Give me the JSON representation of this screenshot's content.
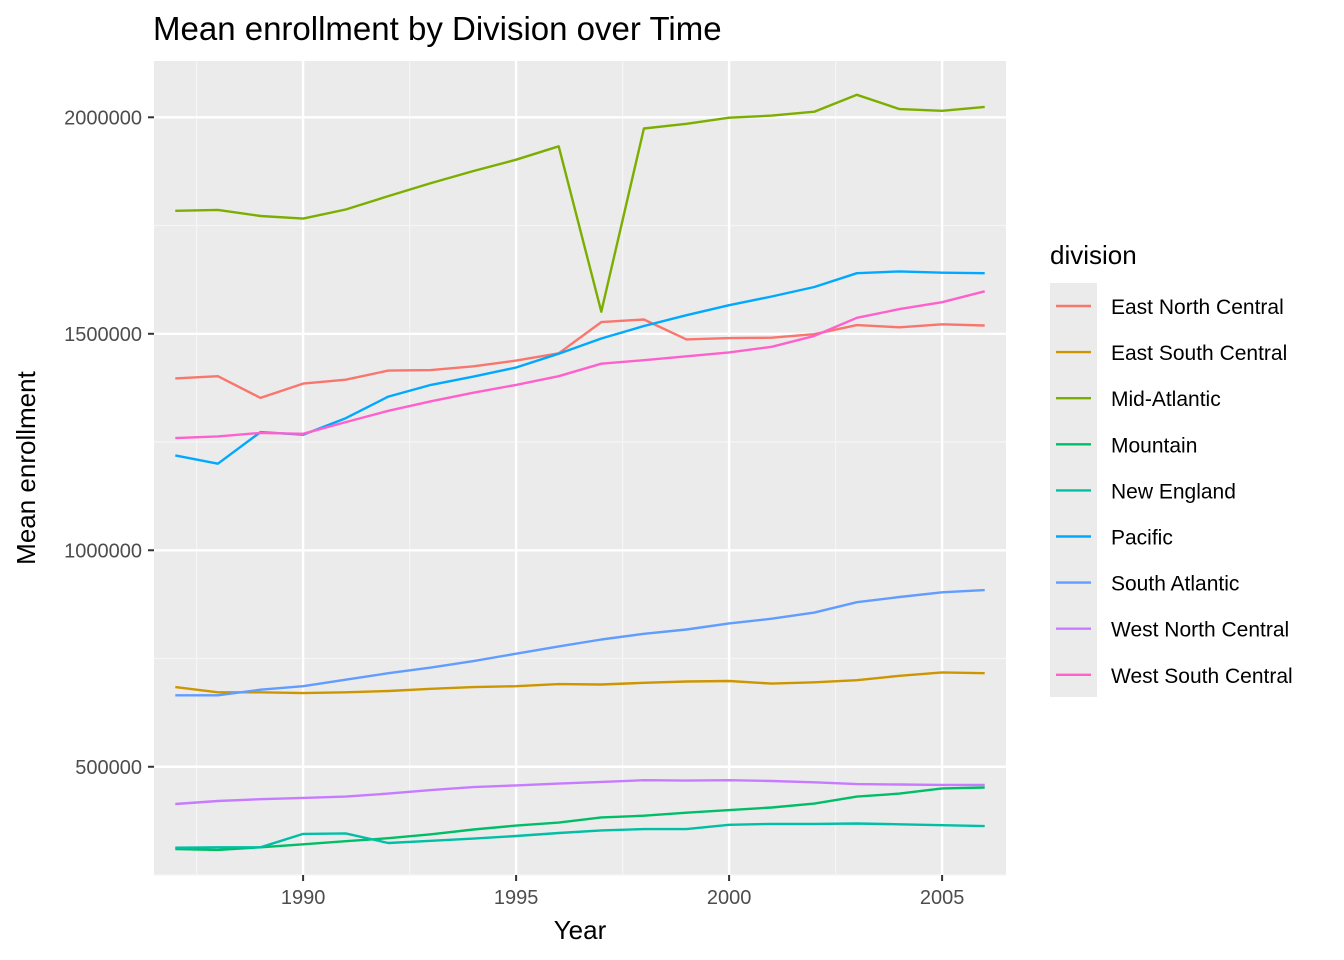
{
  "chart_data": {
    "type": "line",
    "title": "Mean enrollment by Division over Time",
    "xlabel": "Year",
    "ylabel": "Mean enrollment",
    "xlim": [
      1986.5,
      2006.5
    ],
    "ylim": [
      250000,
      2130000
    ],
    "x_ticks": [
      1990,
      1995,
      2000,
      2005
    ],
    "y_ticks": [
      500000,
      1000000,
      1500000,
      2000000
    ],
    "x_tick_labels": [
      "1990",
      "1995",
      "2000",
      "2005"
    ],
    "y_tick_labels": [
      "500000",
      "1000000",
      "1500000",
      "2000000"
    ],
    "grid": true,
    "legend_title": "division",
    "legend_position": "right",
    "x": [
      1987,
      1988,
      1989,
      1990,
      1991,
      1992,
      1993,
      1994,
      1995,
      1996,
      1997,
      1998,
      1999,
      2000,
      2001,
      2002,
      2003,
      2004,
      2005,
      2006
    ],
    "series": [
      {
        "name": "East North Central",
        "color": "#F8766D",
        "values": [
          1397000,
          1402000,
          1352000,
          1385000,
          1394000,
          1415000,
          1416000,
          1425000,
          1438000,
          1455000,
          1527000,
          1533000,
          1487000,
          1490000,
          1491000,
          1499000,
          1520000,
          1515000,
          1522000,
          1519000
        ]
      },
      {
        "name": "East South Central",
        "color": "#CD9600",
        "values": [
          684000,
          672000,
          672000,
          670000,
          672000,
          675000,
          680000,
          684000,
          686000,
          691000,
          690000,
          694000,
          697000,
          698000,
          692000,
          695000,
          700000,
          710000,
          718000,
          716000
        ]
      },
      {
        "name": "Mid-Atlantic",
        "color": "#7CAE00",
        "values": [
          1784000,
          1786000,
          1772000,
          1766000,
          1787000,
          1818000,
          1848000,
          1876000,
          1902000,
          1933000,
          1551000,
          1974000,
          1985000,
          1999000,
          2004000,
          2013000,
          2052000,
          2019000,
          2015000,
          2024000
        ]
      },
      {
        "name": "Mountain",
        "color": "#00BE67",
        "values": [
          310000,
          308000,
          314000,
          321000,
          328000,
          335000,
          344000,
          355000,
          364000,
          371000,
          383000,
          387000,
          394000,
          400000,
          406000,
          415000,
          431000,
          438000,
          450000,
          452000
        ]
      },
      {
        "name": "New England",
        "color": "#00BFA5",
        "values": [
          313000,
          314000,
          314000,
          345000,
          346000,
          324000,
          329000,
          334000,
          340000,
          347000,
          353000,
          356000,
          356000,
          366000,
          368000,
          368000,
          369000,
          367000,
          365000,
          363000
        ]
      },
      {
        "name": "Pacific",
        "color": "#00A9FF",
        "values": [
          1219000,
          1200000,
          1273000,
          1267000,
          1305000,
          1355000,
          1382000,
          1401000,
          1422000,
          1454000,
          1489000,
          1518000,
          1543000,
          1566000,
          1586000,
          1608000,
          1640000,
          1644000,
          1641000,
          1640000
        ]
      },
      {
        "name": "South Atlantic",
        "color": "#619CFF",
        "values": [
          665000,
          665000,
          678000,
          686000,
          701000,
          716000,
          729000,
          744000,
          761000,
          778000,
          794000,
          807000,
          817000,
          831000,
          842000,
          856000,
          880000,
          892000,
          903000,
          908000
        ]
      },
      {
        "name": "West North Central",
        "color": "#C77CFF",
        "values": [
          414000,
          421000,
          425000,
          428000,
          431000,
          438000,
          446000,
          453000,
          457000,
          461000,
          465000,
          469000,
          468000,
          469000,
          467000,
          464000,
          460000,
          459000,
          458000,
          458000
        ]
      },
      {
        "name": "West South Central",
        "color": "#FF61CC",
        "values": [
          1259000,
          1263000,
          1271000,
          1269000,
          1296000,
          1322000,
          1344000,
          1364000,
          1382000,
          1402000,
          1431000,
          1439000,
          1448000,
          1457000,
          1470000,
          1495000,
          1537000,
          1557000,
          1573000,
          1598000
        ]
      }
    ]
  }
}
